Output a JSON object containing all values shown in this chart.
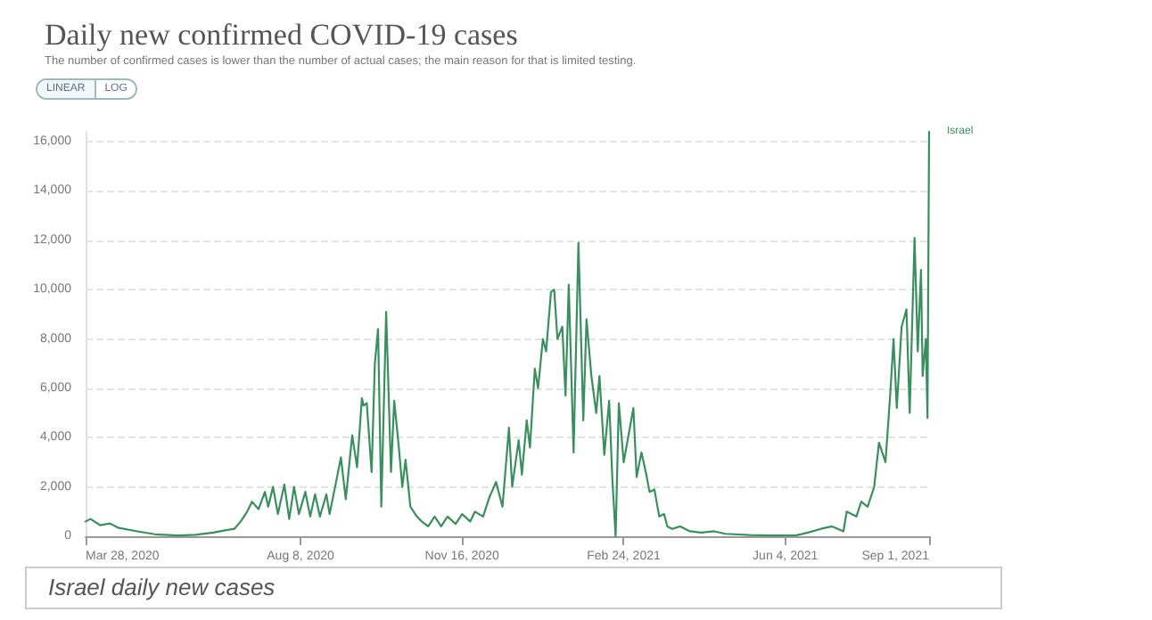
{
  "chart_data": {
    "type": "line",
    "title": "Daily new confirmed COVID-19 cases",
    "subtitle": "The number of confirmed cases is lower than the number of actual cases; the main reason for that is limited testing.",
    "annotations": [
      "LINEAR",
      "LOG",
      "Israel daily new cases"
    ],
    "x": [
      "2020-03-28",
      "2020-03-31",
      "2020-04-06",
      "2020-04-12",
      "2020-04-17",
      "2020-04-29",
      "2020-05-10",
      "2020-05-24",
      "2020-06-04",
      "2020-06-15",
      "2020-06-23",
      "2020-06-28",
      "2020-07-02",
      "2020-07-06",
      "2020-07-09",
      "2020-07-13",
      "2020-07-17",
      "2020-07-19",
      "2020-07-22",
      "2020-07-25",
      "2020-07-29",
      "2020-08-01",
      "2020-08-04",
      "2020-08-07",
      "2020-08-11",
      "2020-08-14",
      "2020-08-17",
      "2020-08-20",
      "2020-08-24",
      "2020-08-26",
      "2020-08-30",
      "2020-09-02",
      "2020-09-05",
      "2020-09-09",
      "2020-09-12",
      "2020-09-15",
      "2020-09-16",
      "2020-09-18",
      "2020-09-21",
      "2020-09-23",
      "2020-09-25",
      "2020-09-27",
      "2020-09-30",
      "2020-10-03",
      "2020-10-05",
      "2020-10-08",
      "2020-10-10",
      "2020-10-12",
      "2020-10-15",
      "2020-10-19",
      "2020-10-22",
      "2020-10-26",
      "2020-10-30",
      "2020-11-03",
      "2020-11-07",
      "2020-11-12",
      "2020-11-16",
      "2020-11-21",
      "2020-11-24",
      "2020-11-29",
      "2020-12-03",
      "2020-12-07",
      "2020-12-11",
      "2020-12-15",
      "2020-12-17",
      "2020-12-21",
      "2020-12-23",
      "2020-12-26",
      "2020-12-28",
      "2020-12-31",
      "2021-01-02",
      "2021-01-05",
      "2021-01-07",
      "2021-01-10",
      "2021-01-12",
      "2021-01-14",
      "2021-01-17",
      "2021-01-19",
      "2021-01-21",
      "2021-01-24",
      "2021-01-27",
      "2021-01-30",
      "2021-02-01",
      "2021-02-04",
      "2021-02-07",
      "2021-02-09",
      "2021-02-12",
      "2021-02-15",
      "2021-02-17",
      "2021-02-19",
      "2021-02-21",
      "2021-02-24",
      "2021-02-27",
      "2021-03-02",
      "2021-03-04",
      "2021-03-07",
      "2021-03-10",
      "2021-03-12",
      "2021-03-15",
      "2021-03-18",
      "2021-03-21",
      "2021-03-23",
      "2021-03-26",
      "2021-03-31",
      "2021-04-06",
      "2021-04-13",
      "2021-04-21",
      "2021-04-28",
      "2021-05-13",
      "2021-05-27",
      "2021-06-11",
      "2021-06-18",
      "2021-06-26",
      "2021-07-03",
      "2021-07-10",
      "2021-07-12",
      "2021-07-18",
      "2021-07-21",
      "2021-07-25",
      "2021-07-29",
      "2021-08-01",
      "2021-08-05",
      "2021-08-08",
      "2021-08-10",
      "2021-08-12",
      "2021-08-15",
      "2021-08-18",
      "2021-08-20",
      "2021-08-23",
      "2021-08-25",
      "2021-08-27",
      "2021-08-28",
      "2021-08-30",
      "2021-08-31",
      "2021-09-01"
    ],
    "series": [
      {
        "name": "Israel",
        "color": "#3a8f5e",
        "values": [
          600,
          700,
          450,
          520,
          350,
          200,
          80,
          30,
          60,
          150,
          250,
          300,
          600,
          1000,
          1400,
          1100,
          1800,
          1200,
          2000,
          900,
          2100,
          700,
          2000,
          900,
          1800,
          800,
          1700,
          800,
          1700,
          900,
          2200,
          3200,
          1500,
          4100,
          2800,
          5600,
          5300,
          5400,
          2600,
          7000,
          8400,
          1200,
          9100,
          2600,
          5500,
          3500,
          2000,
          3100,
          1200,
          800,
          600,
          400,
          800,
          400,
          800,
          500,
          900,
          600,
          1000,
          800,
          1600,
          2200,
          1200,
          4400,
          2000,
          3900,
          2500,
          4700,
          3600,
          6800,
          6000,
          8000,
          7500,
          9900,
          10000,
          8000,
          8500,
          5700,
          10200,
          3400,
          11900,
          4700,
          8800,
          6500,
          5000,
          6500,
          3300,
          5500,
          2300,
          0,
          5400,
          3000,
          4100,
          5200,
          2400,
          3400,
          2500,
          1800,
          1900,
          800,
          900,
          400,
          300,
          400,
          200,
          150,
          200,
          100,
          50,
          30,
          40,
          150,
          300,
          400,
          200,
          1000,
          800,
          1400,
          1200,
          2000,
          3800,
          3000,
          5800,
          8000,
          5200,
          8500,
          9200,
          5000,
          12100,
          7500,
          10800,
          6500,
          8000,
          4800,
          16400
        ]
      }
    ],
    "xlim": [
      "2020-03-28",
      "2021-09-01"
    ],
    "xticks": [
      {
        "value": "2020-03-28",
        "label": "Mar 28, 2020"
      },
      {
        "value": "2020-08-08",
        "label": "Aug 8, 2020"
      },
      {
        "value": "2020-11-16",
        "label": "Nov 16, 2020"
      },
      {
        "value": "2021-02-24",
        "label": "Feb 24, 2021"
      },
      {
        "value": "2021-06-04",
        "label": "Jun 4, 2021"
      },
      {
        "value": "2021-09-01",
        "label": "Sep 1, 2021"
      }
    ],
    "ylim": [
      0,
      16400
    ],
    "yticks": [
      0,
      {
        "value": 2000,
        "label": "2,000"
      },
      {
        "value": 4000,
        "label": "4,000"
      },
      {
        "value": 6000,
        "label": "6,000"
      },
      {
        "value": 8000,
        "label": "8,000"
      },
      {
        "value": 10000,
        "label": "10,000"
      },
      {
        "value": 12000,
        "label": "12,000"
      },
      {
        "value": 14000,
        "label": "14,000"
      },
      {
        "value": 16000,
        "label": "16,000"
      }
    ],
    "grid": "y",
    "legend": false,
    "marker": "none",
    "line_style": "solid"
  }
}
